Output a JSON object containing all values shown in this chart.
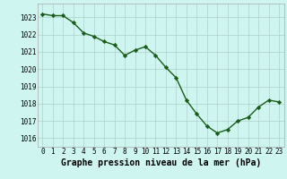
{
  "x": [
    0,
    1,
    2,
    3,
    4,
    5,
    6,
    7,
    8,
    9,
    10,
    11,
    12,
    13,
    14,
    15,
    16,
    17,
    18,
    19,
    20,
    21,
    22,
    23
  ],
  "y": [
    1023.2,
    1023.1,
    1023.1,
    1022.7,
    1022.1,
    1021.9,
    1021.6,
    1021.4,
    1020.8,
    1021.1,
    1021.3,
    1020.8,
    1020.1,
    1019.5,
    1018.2,
    1017.4,
    1016.7,
    1016.3,
    1016.5,
    1017.0,
    1017.2,
    1017.8,
    1018.2,
    1018.1
  ],
  "line_color": "#1a5c1a",
  "marker": "D",
  "marker_size": 2.2,
  "bg_color": "#cef5f0",
  "grid_color": "#b0d0cc",
  "xlabel": "Graphe pression niveau de la mer (hPa)",
  "xlabel_fontsize": 7,
  "ylim": [
    1015.5,
    1023.8
  ],
  "xlim": [
    -0.5,
    23.5
  ],
  "yticks": [
    1016,
    1017,
    1018,
    1019,
    1020,
    1021,
    1022,
    1023
  ],
  "xticks": [
    0,
    1,
    2,
    3,
    4,
    5,
    6,
    7,
    8,
    9,
    10,
    11,
    12,
    13,
    14,
    15,
    16,
    17,
    18,
    19,
    20,
    21,
    22,
    23
  ],
  "tick_fontsize": 5.5,
  "linewidth": 1.0
}
